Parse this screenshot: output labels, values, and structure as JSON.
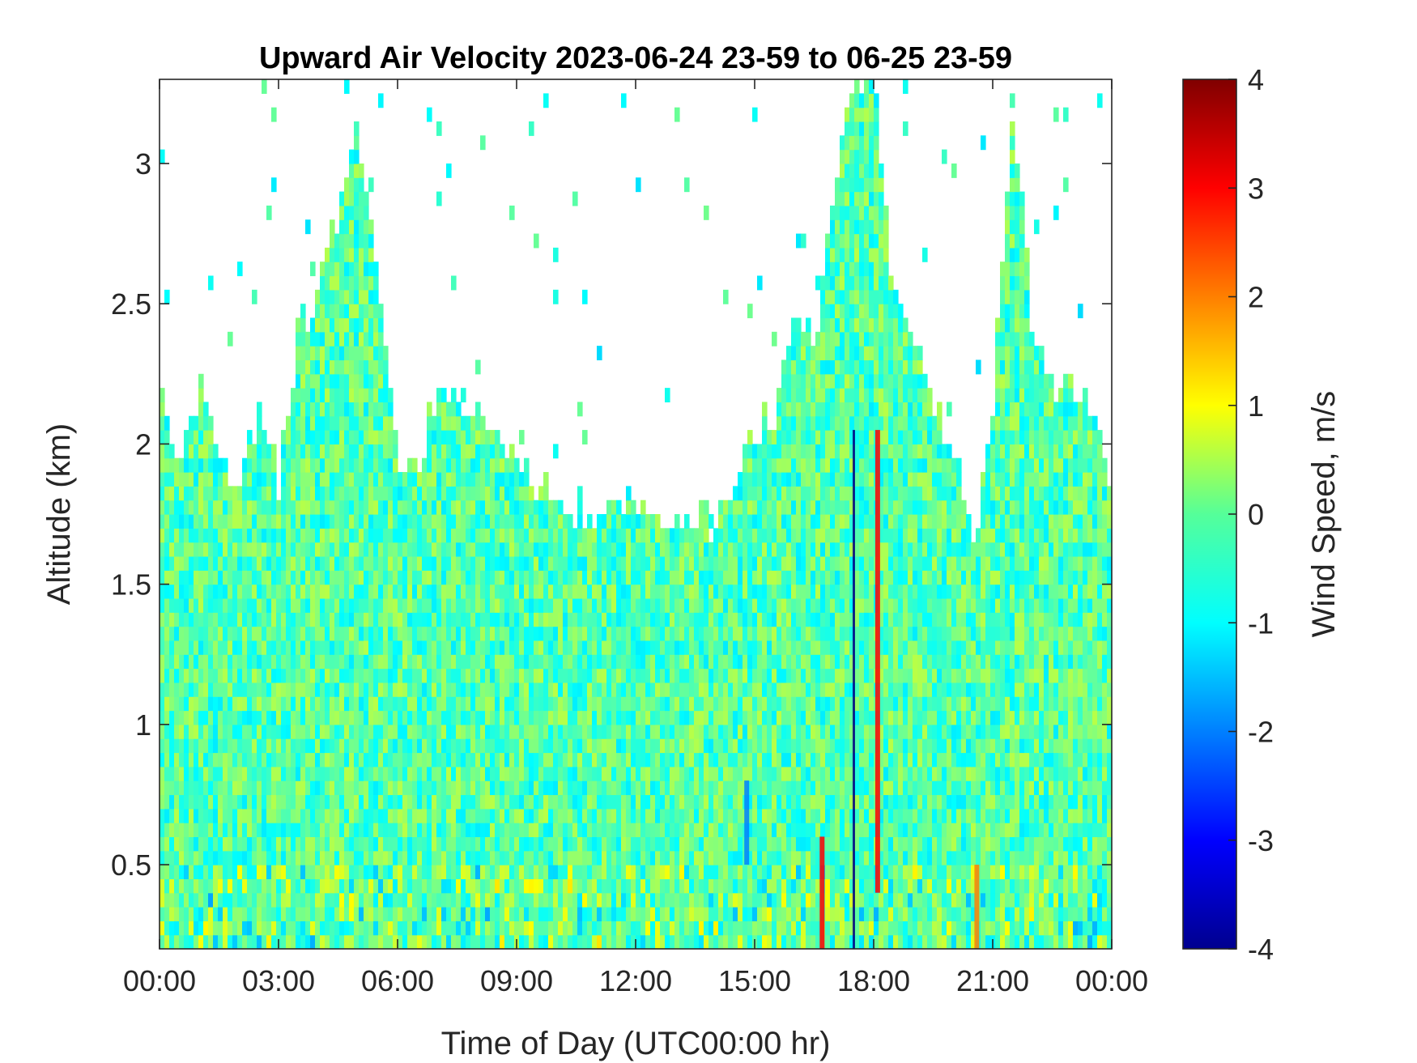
{
  "chart_data": {
    "type": "heatmap",
    "title": "Upward Air Velocity 2023-06-24 23-59 to 06-25 23-59",
    "xlabel": "Time of Day (UTC00:00 hr)",
    "ylabel": "Altitude (km)",
    "colorbar_label": "Wind Speed, m/s",
    "x_unit": "hours",
    "xlim": [
      0,
      24
    ],
    "ylim": [
      0.2,
      3.3
    ],
    "clim": [
      -4,
      4
    ],
    "colormap": "jet",
    "xticks": [
      0,
      3,
      6,
      9,
      12,
      15,
      18,
      21,
      24
    ],
    "xticklabels": [
      "00:00",
      "03:00",
      "06:00",
      "09:00",
      "12:00",
      "15:00",
      "18:00",
      "21:00",
      "00:00"
    ],
    "yticks": [
      0.5,
      1,
      1.5,
      2,
      2.5,
      3
    ],
    "yticklabels": [
      "0.5",
      "1",
      "1.5",
      "2",
      "2.5",
      "3"
    ],
    "cticks": [
      -4,
      -3,
      -2,
      -1,
      0,
      1,
      2,
      3,
      4
    ],
    "cticklabels": [
      "-4",
      "-3",
      "-2",
      "-1",
      "0",
      "1",
      "2",
      "3",
      "4"
    ],
    "data_top_altitude_km": {
      "hours": [
        0,
        0.5,
        1,
        1.5,
        2,
        2.5,
        3,
        3.5,
        4,
        4.5,
        5,
        5.5,
        6,
        6.5,
        7,
        7.5,
        8,
        8.5,
        9,
        9.5,
        10,
        10.5,
        11,
        11.5,
        12,
        12.5,
        13,
        13.5,
        14,
        14.5,
        15,
        15.5,
        16,
        16.5,
        17,
        17.5,
        18,
        18.5,
        19,
        19.5,
        20,
        20.5,
        21,
        21.5,
        22,
        22.5,
        23,
        23.5,
        24
      ],
      "values": [
        2.2,
        1.9,
        2.2,
        1.9,
        1.85,
        2.1,
        1.85,
        2.4,
        2.5,
        2.8,
        3.1,
        2.6,
        1.9,
        1.85,
        2.2,
        2.1,
        2.1,
        2.0,
        1.95,
        1.85,
        1.8,
        1.75,
        1.72,
        1.72,
        1.78,
        1.74,
        1.68,
        1.7,
        1.7,
        1.85,
        2.0,
        2.1,
        2.5,
        2.3,
        2.9,
        3.3,
        3.3,
        2.5,
        2.4,
        2.1,
        2.0,
        1.6,
        2.1,
        3.2,
        2.4,
        2.15,
        2.2,
        2.1,
        1.8
      ]
    },
    "features": [
      {
        "hours": 17.5,
        "altitude_km": [
          0.2,
          2.05
        ],
        "value_ms": -4
      },
      {
        "hours": 18.1,
        "altitude_km": [
          0.4,
          2.05
        ],
        "value_ms": 3
      },
      {
        "hours": 14.8,
        "altitude_km": [
          0.5,
          0.8
        ],
        "value_ms": -2
      },
      {
        "hours": 16.7,
        "altitude_km": [
          0.2,
          0.6
        ],
        "value_ms": 3
      },
      {
        "hours": 20.6,
        "altitude_km": [
          0.2,
          0.5
        ],
        "value_ms": 2
      }
    ]
  }
}
